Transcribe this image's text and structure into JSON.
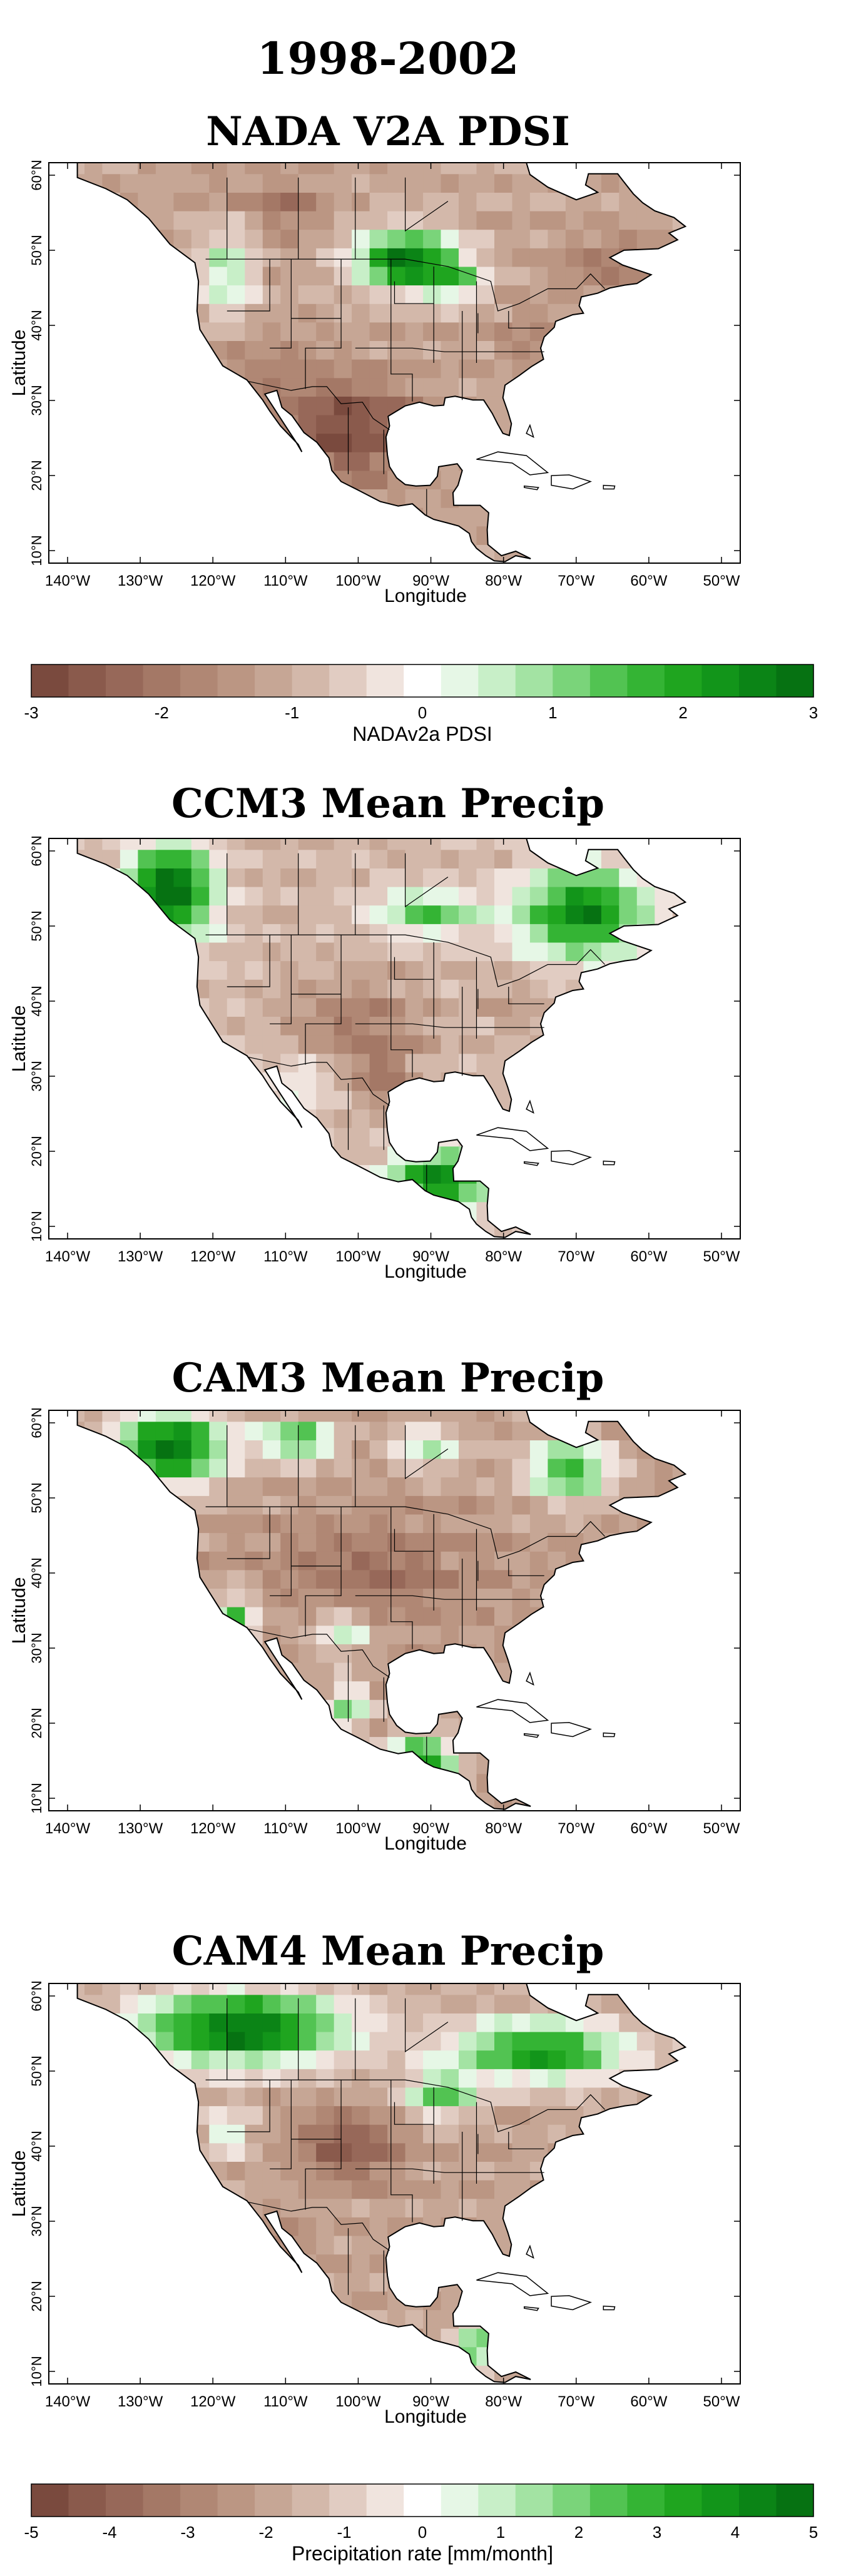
{
  "title": "1998-2002",
  "x_ticks": [
    "140°W",
    "130°W",
    "120°W",
    "110°W",
    "100°W",
    "90°W",
    "80°W",
    "70°W",
    "60°W",
    "50°W"
  ],
  "y_ticks": [
    "60°N",
    "50°N",
    "40°N",
    "30°N",
    "20°N",
    "10°N"
  ],
  "xlabel": "Longitude",
  "ylabel": "Latitude",
  "colors": {
    "dry": [
      "#7a4a3e",
      "#8a5a4c",
      "#976859",
      "#a47866",
      "#b08774",
      "#bb9683",
      "#c6a695",
      "#d3b8aa",
      "#e1ccc2",
      "#f0e4de"
    ],
    "wet": [
      "#e6f7e6",
      "#c8efc8",
      "#a3e3a3",
      "#7ad47a",
      "#52c352",
      "#34b434",
      "#1fa51f",
      "#12951a",
      "#0b8416",
      "#067212"
    ]
  },
  "panels": [
    {
      "title": "NADA V2A PDSI",
      "pattern": "pdsi"
    },
    {
      "title": "CCM3 Mean Precip",
      "pattern": "ccm3"
    },
    {
      "title": "CAM3 Mean Precip",
      "pattern": "cam3"
    },
    {
      "title": "CAM4 Mean Precip",
      "pattern": "cam4"
    }
  ],
  "colorbar_pdsi": {
    "label": "NADAv2a PDSI",
    "range": [
      -3,
      3
    ],
    "ticks": [
      "-3",
      "-2",
      "-1",
      "0",
      "1",
      "2",
      "3"
    ]
  },
  "colorbar_precip": {
    "label": "Precipitation rate [mm/month]",
    "range": [
      -5,
      5
    ],
    "ticks": [
      "-5",
      "-4",
      "-3",
      "-2",
      "-1",
      "0",
      "1",
      "2",
      "3",
      "4",
      "5"
    ]
  }
}
